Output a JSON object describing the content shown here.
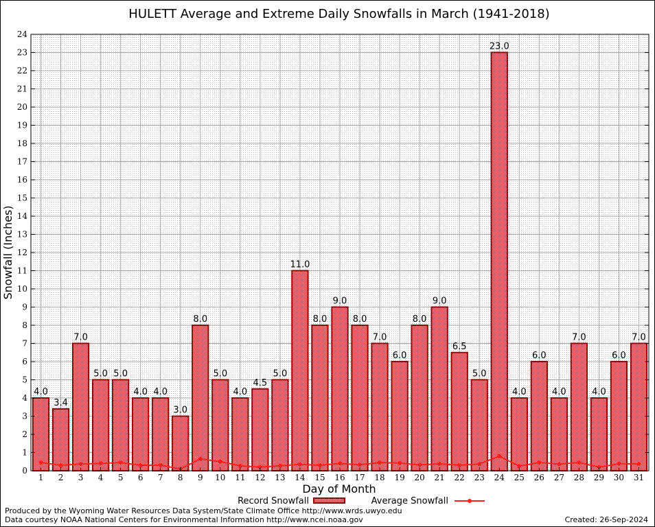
{
  "chart_data": {
    "type": "bar",
    "title": "HULETT Average and Extreme Daily Snowfalls in March (1941-2018)",
    "xlabel": "Day of Month",
    "ylabel": "Snowfall (Inches)",
    "ylim": [
      0,
      24
    ],
    "yticks": [
      0,
      1,
      2,
      3,
      4,
      5,
      6,
      7,
      8,
      9,
      10,
      11,
      12,
      13,
      14,
      15,
      16,
      17,
      18,
      19,
      20,
      21,
      22,
      23,
      24
    ],
    "grid": true,
    "legend_position": "bottom",
    "categories": [
      "1",
      "2",
      "3",
      "4",
      "5",
      "6",
      "7",
      "8",
      "9",
      "10",
      "11",
      "12",
      "13",
      "14",
      "15",
      "16",
      "17",
      "18",
      "19",
      "20",
      "21",
      "22",
      "23",
      "24",
      "25",
      "26",
      "27",
      "28",
      "29",
      "30",
      "31"
    ],
    "series": [
      {
        "name": "Record Snowfall",
        "type": "bar",
        "color": "#cc0000",
        "values": [
          4.0,
          3.4,
          7.0,
          5.0,
          5.0,
          4.0,
          4.0,
          3.0,
          8.0,
          5.0,
          4.0,
          4.5,
          5.0,
          11.0,
          8.0,
          9.0,
          8.0,
          7.0,
          6.0,
          8.0,
          9.0,
          6.5,
          5.0,
          23.0,
          4.0,
          6.0,
          4.0,
          7.0,
          4.0,
          6.0,
          7.0
        ],
        "labels": [
          "4.0",
          "3.4",
          "7.0",
          "5.0",
          "5.0",
          "4.0",
          "4.0",
          "3.0",
          "8.0",
          "5.0",
          "4.0",
          "4.5",
          "5.0",
          "11.0",
          "8.0",
          "9.0",
          "8.0",
          "7.0",
          "6.0",
          "8.0",
          "9.0",
          "6.5",
          "5.0",
          "23.0",
          "4.0",
          "6.0",
          "4.0",
          "7.0",
          "4.0",
          "6.0",
          "7.0"
        ]
      },
      {
        "name": "Average Snowfall",
        "type": "line",
        "color": "#ff2020",
        "values": [
          0.45,
          0.3,
          0.37,
          0.4,
          0.45,
          0.3,
          0.3,
          0.1,
          0.65,
          0.5,
          0.27,
          0.2,
          0.27,
          0.35,
          0.3,
          0.4,
          0.33,
          0.45,
          0.42,
          0.32,
          0.38,
          0.3,
          0.37,
          0.8,
          0.25,
          0.45,
          0.37,
          0.45,
          0.2,
          0.38,
          0.38
        ]
      }
    ]
  },
  "footer": {
    "credit1": "Produced by the Wyoming Water Resources Data System/State Climate Office http://www.wrds.uwyo.edu",
    "credit2": "Data courtesy NOAA National Centers for Environmental Information http://www.ncei.noaa.gov",
    "created": "Created: 26-Sep-2024"
  }
}
